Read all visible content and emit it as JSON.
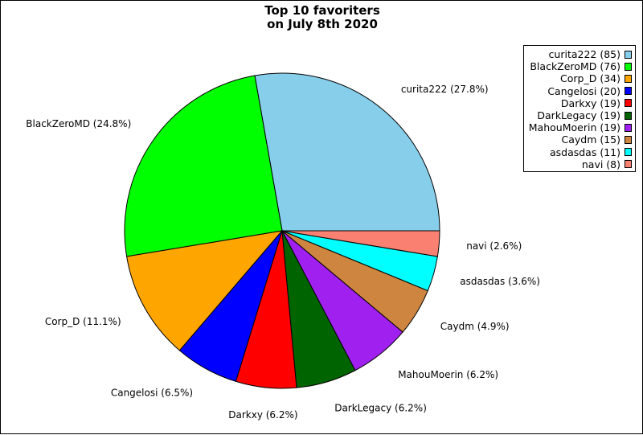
{
  "chart_data": {
    "type": "pie",
    "title": "Top 10 favoriters",
    "subtitle": "on July 8th 2020",
    "slices": [
      {
        "name": "curita222",
        "value": 85,
        "percent_label": "27.8%",
        "color": "#87CEEB"
      },
      {
        "name": "BlackZeroMD",
        "value": 76,
        "percent_label": "24.8%",
        "color": "#00FF00"
      },
      {
        "name": "Corp_D",
        "value": 34,
        "percent_label": "11.1%",
        "color": "#FFA500"
      },
      {
        "name": "Cangelosi",
        "value": 20,
        "percent_label": "6.5%",
        "color": "#0000FF"
      },
      {
        "name": "Darkxy",
        "value": 19,
        "percent_label": "6.2%",
        "color": "#FF0000"
      },
      {
        "name": "DarkLegacy",
        "value": 19,
        "percent_label": "6.2%",
        "color": "#006400"
      },
      {
        "name": "MahouMoerin",
        "value": 19,
        "percent_label": "6.2%",
        "color": "#A020F0"
      },
      {
        "name": "Caydm",
        "value": 15,
        "percent_label": "4.9%",
        "color": "#CD853F"
      },
      {
        "name": "asdasdas",
        "value": 11,
        "percent_label": "3.6%",
        "color": "#00FFFF"
      },
      {
        "name": "navi",
        "value": 8,
        "percent_label": "2.6%",
        "color": "#FA8072"
      }
    ],
    "legend_placement": "top-right",
    "grid": false
  }
}
